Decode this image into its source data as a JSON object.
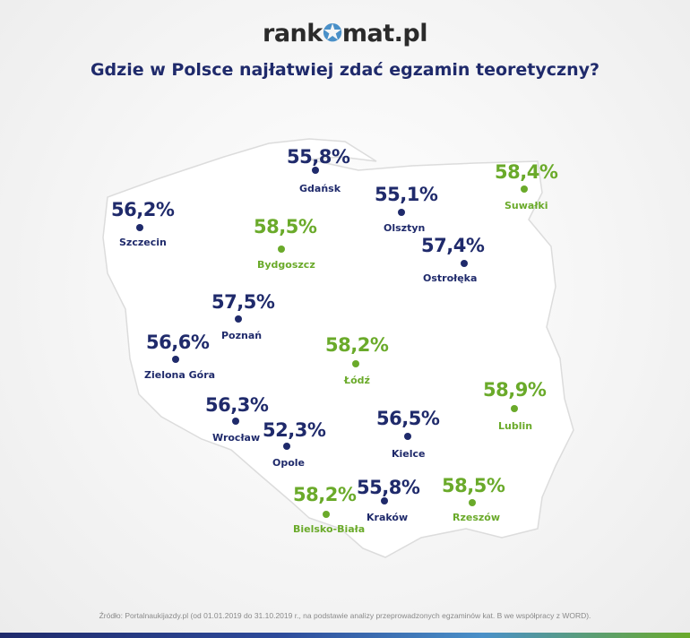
{
  "logo": {
    "left": "rank",
    "star": "✪",
    "right": "mat.pl"
  },
  "title": "Gdzie w Polsce najłatwiej zdać egzamin teoretyczny?",
  "colors": {
    "navy": "#1f2a6b",
    "green": "#6aaa2a",
    "map_fill": "#ffffff"
  },
  "cities": [
    {
      "name": "Gdańsk",
      "value": "55,8%",
      "color": "navy"
    },
    {
      "name": "Suwałki",
      "value": "58,4%",
      "color": "green"
    },
    {
      "name": "Szczecin",
      "value": "56,2%",
      "color": "navy"
    },
    {
      "name": "Olsztyn",
      "value": "55,1%",
      "color": "navy"
    },
    {
      "name": "Bydgoszcz",
      "value": "58,5%",
      "color": "green"
    },
    {
      "name": "Ostrołęka",
      "value": "57,4%",
      "color": "navy"
    },
    {
      "name": "Poznań",
      "value": "57,5%",
      "color": "navy"
    },
    {
      "name": "Zielona Góra",
      "value": "56,6%",
      "color": "navy"
    },
    {
      "name": "Łódź",
      "value": "58,2%",
      "color": "green"
    },
    {
      "name": "Lublin",
      "value": "58,9%",
      "color": "green"
    },
    {
      "name": "Wrocław",
      "value": "56,3%",
      "color": "navy"
    },
    {
      "name": "Opole",
      "value": "52,3%",
      "color": "navy"
    },
    {
      "name": "Kielce",
      "value": "56,5%",
      "color": "navy"
    },
    {
      "name": "Bielsko-Biała",
      "value": "58,2%",
      "color": "green"
    },
    {
      "name": "Kraków",
      "value": "55,8%",
      "color": "navy"
    },
    {
      "name": "Rzeszów",
      "value": "58,5%",
      "color": "green"
    }
  ],
  "source": "Źródło: Portalnaukijazdy.pl (od 01.01.2019 do 31.10.2019 r., na podstawie analizy przeprowadzonych egzaminów kat. B we współpracy z WORD)."
}
